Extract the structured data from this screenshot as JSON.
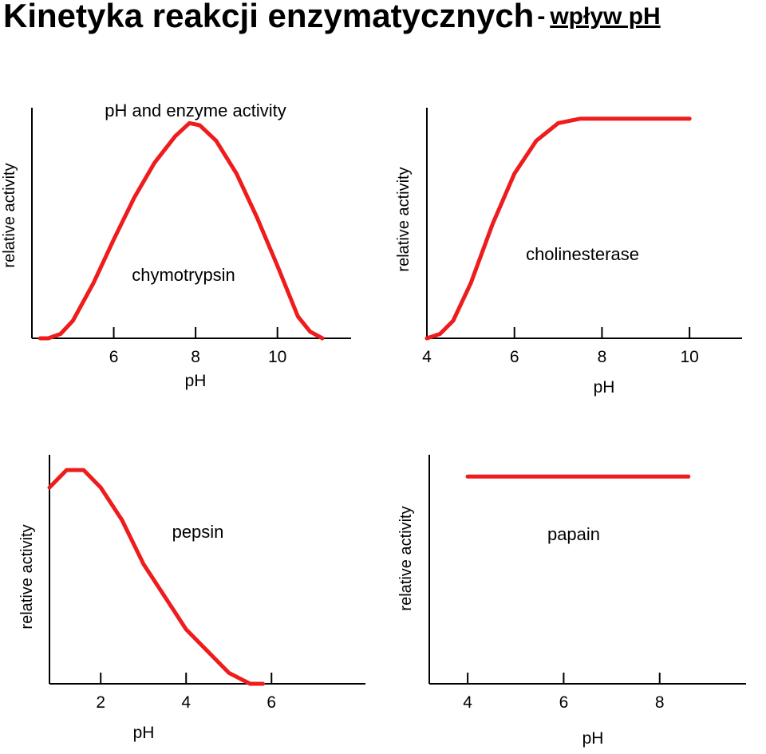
{
  "title": {
    "main": "Kinetyka reakcji enzymatycznych",
    "separator": "-",
    "subtitle": "wpływ pH"
  },
  "colors": {
    "curve": "#ee1c1c",
    "axis": "#000000"
  },
  "chart_data": [
    {
      "type": "line",
      "title": "pH and enzyme activity",
      "annotation": "chymotrypsin",
      "xlabel": "pH",
      "ylabel": "relative activity",
      "xlim": [
        4.0,
        11.8
      ],
      "ylim": [
        0,
        1.05
      ],
      "xticks": [
        6,
        8,
        10
      ],
      "series": [
        {
          "x": [
            4.2,
            4.4,
            4.7,
            5.0,
            5.5,
            6.0,
            6.5,
            7.0,
            7.5,
            7.85,
            8.1,
            8.5,
            9.0,
            9.5,
            10.0,
            10.5,
            10.8,
            11.1
          ],
          "y": [
            0.0,
            0.0,
            0.02,
            0.08,
            0.25,
            0.45,
            0.64,
            0.8,
            0.92,
            0.98,
            0.97,
            0.9,
            0.75,
            0.55,
            0.33,
            0.1,
            0.03,
            0.0
          ]
        }
      ]
    },
    {
      "type": "line",
      "annotation": "cholinesterase",
      "xlabel": "pH",
      "ylabel": "relative activity",
      "xlim": [
        4.0,
        11.2
      ],
      "ylim": [
        0,
        1.05
      ],
      "xticks": [
        4,
        6,
        8,
        10
      ],
      "series": [
        {
          "x": [
            4.0,
            4.3,
            4.6,
            5.0,
            5.5,
            6.0,
            6.5,
            7.0,
            7.5,
            8.0,
            9.0,
            10.0
          ],
          "y": [
            0.0,
            0.02,
            0.08,
            0.25,
            0.52,
            0.75,
            0.9,
            0.98,
            1.0,
            1.0,
            1.0,
            1.0
          ]
        }
      ]
    },
    {
      "type": "line",
      "annotation": "pepsin",
      "xlabel": "pH",
      "ylabel": "relative activity",
      "xlim": [
        0.8,
        8.2
      ],
      "ylim": [
        0,
        1.05
      ],
      "xticks": [
        2,
        4,
        6
      ],
      "series": [
        {
          "x": [
            0.8,
            1.2,
            1.6,
            2.0,
            2.5,
            3.0,
            3.5,
            4.0,
            4.5,
            5.0,
            5.5,
            5.8
          ],
          "y": [
            0.9,
            0.98,
            0.98,
            0.9,
            0.75,
            0.55,
            0.4,
            0.25,
            0.15,
            0.05,
            0.0,
            0.0
          ]
        }
      ]
    },
    {
      "type": "line",
      "annotation": "papain",
      "xlabel": "pH",
      "ylabel": "relative activity",
      "xlim": [
        3.2,
        9.8
      ],
      "ylim": [
        0,
        1.05
      ],
      "xticks": [
        4,
        6,
        8
      ],
      "series": [
        {
          "x": [
            4.0,
            8.6
          ],
          "y": [
            0.95,
            0.95
          ]
        }
      ]
    }
  ]
}
